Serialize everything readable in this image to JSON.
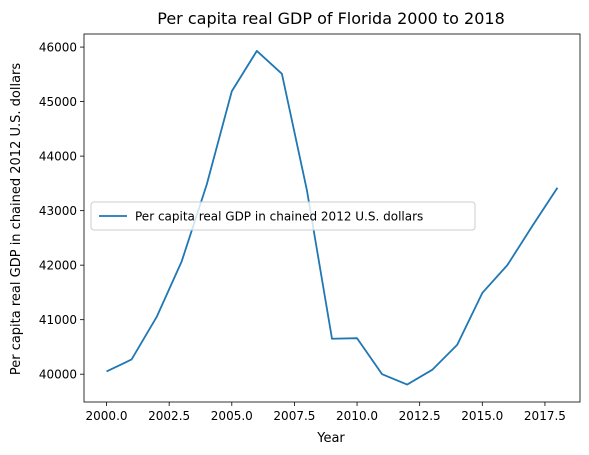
{
  "chart_data": {
    "type": "line",
    "title": "Per capita real GDP of Florida 2000 to 2018",
    "xlabel": "Year",
    "ylabel": "Per capita real GDP in chained 2012 U.S. dollars",
    "xlim": [
      1999.1,
      2018.9
    ],
    "ylim": [
      39490,
      46240
    ],
    "x_ticks": [
      2000.0,
      2002.5,
      2005.0,
      2007.5,
      2010.0,
      2012.5,
      2015.0,
      2017.5
    ],
    "x_tick_labels": [
      "2000.0",
      "2002.5",
      "2005.0",
      "2007.5",
      "2010.0",
      "2012.5",
      "2015.0",
      "2017.5"
    ],
    "y_ticks": [
      40000,
      41000,
      42000,
      43000,
      44000,
      45000,
      46000
    ],
    "y_tick_labels": [
      "40000",
      "41000",
      "42000",
      "43000",
      "44000",
      "45000",
      "46000"
    ],
    "grid": false,
    "legend_position": "center-left",
    "series": [
      {
        "name": "Per capita real GDP in chained 2012 U.S. dollars",
        "color": "#1f77b4",
        "x": [
          2000,
          2001,
          2002,
          2003,
          2004,
          2005,
          2006,
          2007,
          2008,
          2009,
          2010,
          2011,
          2012,
          2013,
          2014,
          2015,
          2016,
          2017,
          2018
        ],
        "y": [
          40050,
          40270,
          41050,
          42070,
          43480,
          45190,
          45930,
          45510,
          43370,
          40650,
          40660,
          40000,
          39810,
          40080,
          40540,
          41490,
          42000,
          42720,
          43420
        ]
      }
    ]
  }
}
